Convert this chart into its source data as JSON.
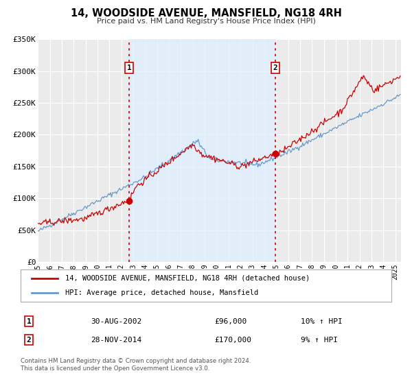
{
  "title": "14, WOODSIDE AVENUE, MANSFIELD, NG18 4RH",
  "subtitle": "Price paid vs. HM Land Registry's House Price Index (HPI)",
  "ylim": [
    0,
    350000
  ],
  "xlim_start": 1995.0,
  "xlim_end": 2025.5,
  "yticks": [
    0,
    50000,
    100000,
    150000,
    200000,
    250000,
    300000,
    350000
  ],
  "ytick_labels": [
    "£0",
    "£50K",
    "£100K",
    "£150K",
    "£200K",
    "£250K",
    "£300K",
    "£350K"
  ],
  "xticks": [
    1995,
    1996,
    1997,
    1998,
    1999,
    2000,
    2001,
    2002,
    2003,
    2004,
    2005,
    2006,
    2007,
    2008,
    2009,
    2010,
    2011,
    2012,
    2013,
    2014,
    2015,
    2016,
    2017,
    2018,
    2019,
    2020,
    2021,
    2022,
    2023,
    2024,
    2025
  ],
  "sale1_x": 2002.66,
  "sale1_y": 96000,
  "sale2_x": 2014.91,
  "sale2_y": 170000,
  "sale1_label": "1",
  "sale2_label": "2",
  "sale1_date": "30-AUG-2002",
  "sale2_date": "28-NOV-2014",
  "sale1_price": "£96,000",
  "sale2_price": "£170,000",
  "sale1_hpi": "10% ↑ HPI",
  "sale2_hpi": "9% ↑ HPI",
  "line1_color": "#cc0000",
  "line2_color": "#6699cc",
  "fill_color": "#ddeeff",
  "vline_color": "#cc0000",
  "bg_color": "#ffffff",
  "plot_bg_color": "#ebebeb",
  "grid_color": "#ffffff",
  "legend1_label": "14, WOODSIDE AVENUE, MANSFIELD, NG18 4RH (detached house)",
  "legend2_label": "HPI: Average price, detached house, Mansfield",
  "footer1": "Contains HM Land Registry data © Crown copyright and database right 2024.",
  "footer2": "This data is licensed under the Open Government Licence v3.0."
}
